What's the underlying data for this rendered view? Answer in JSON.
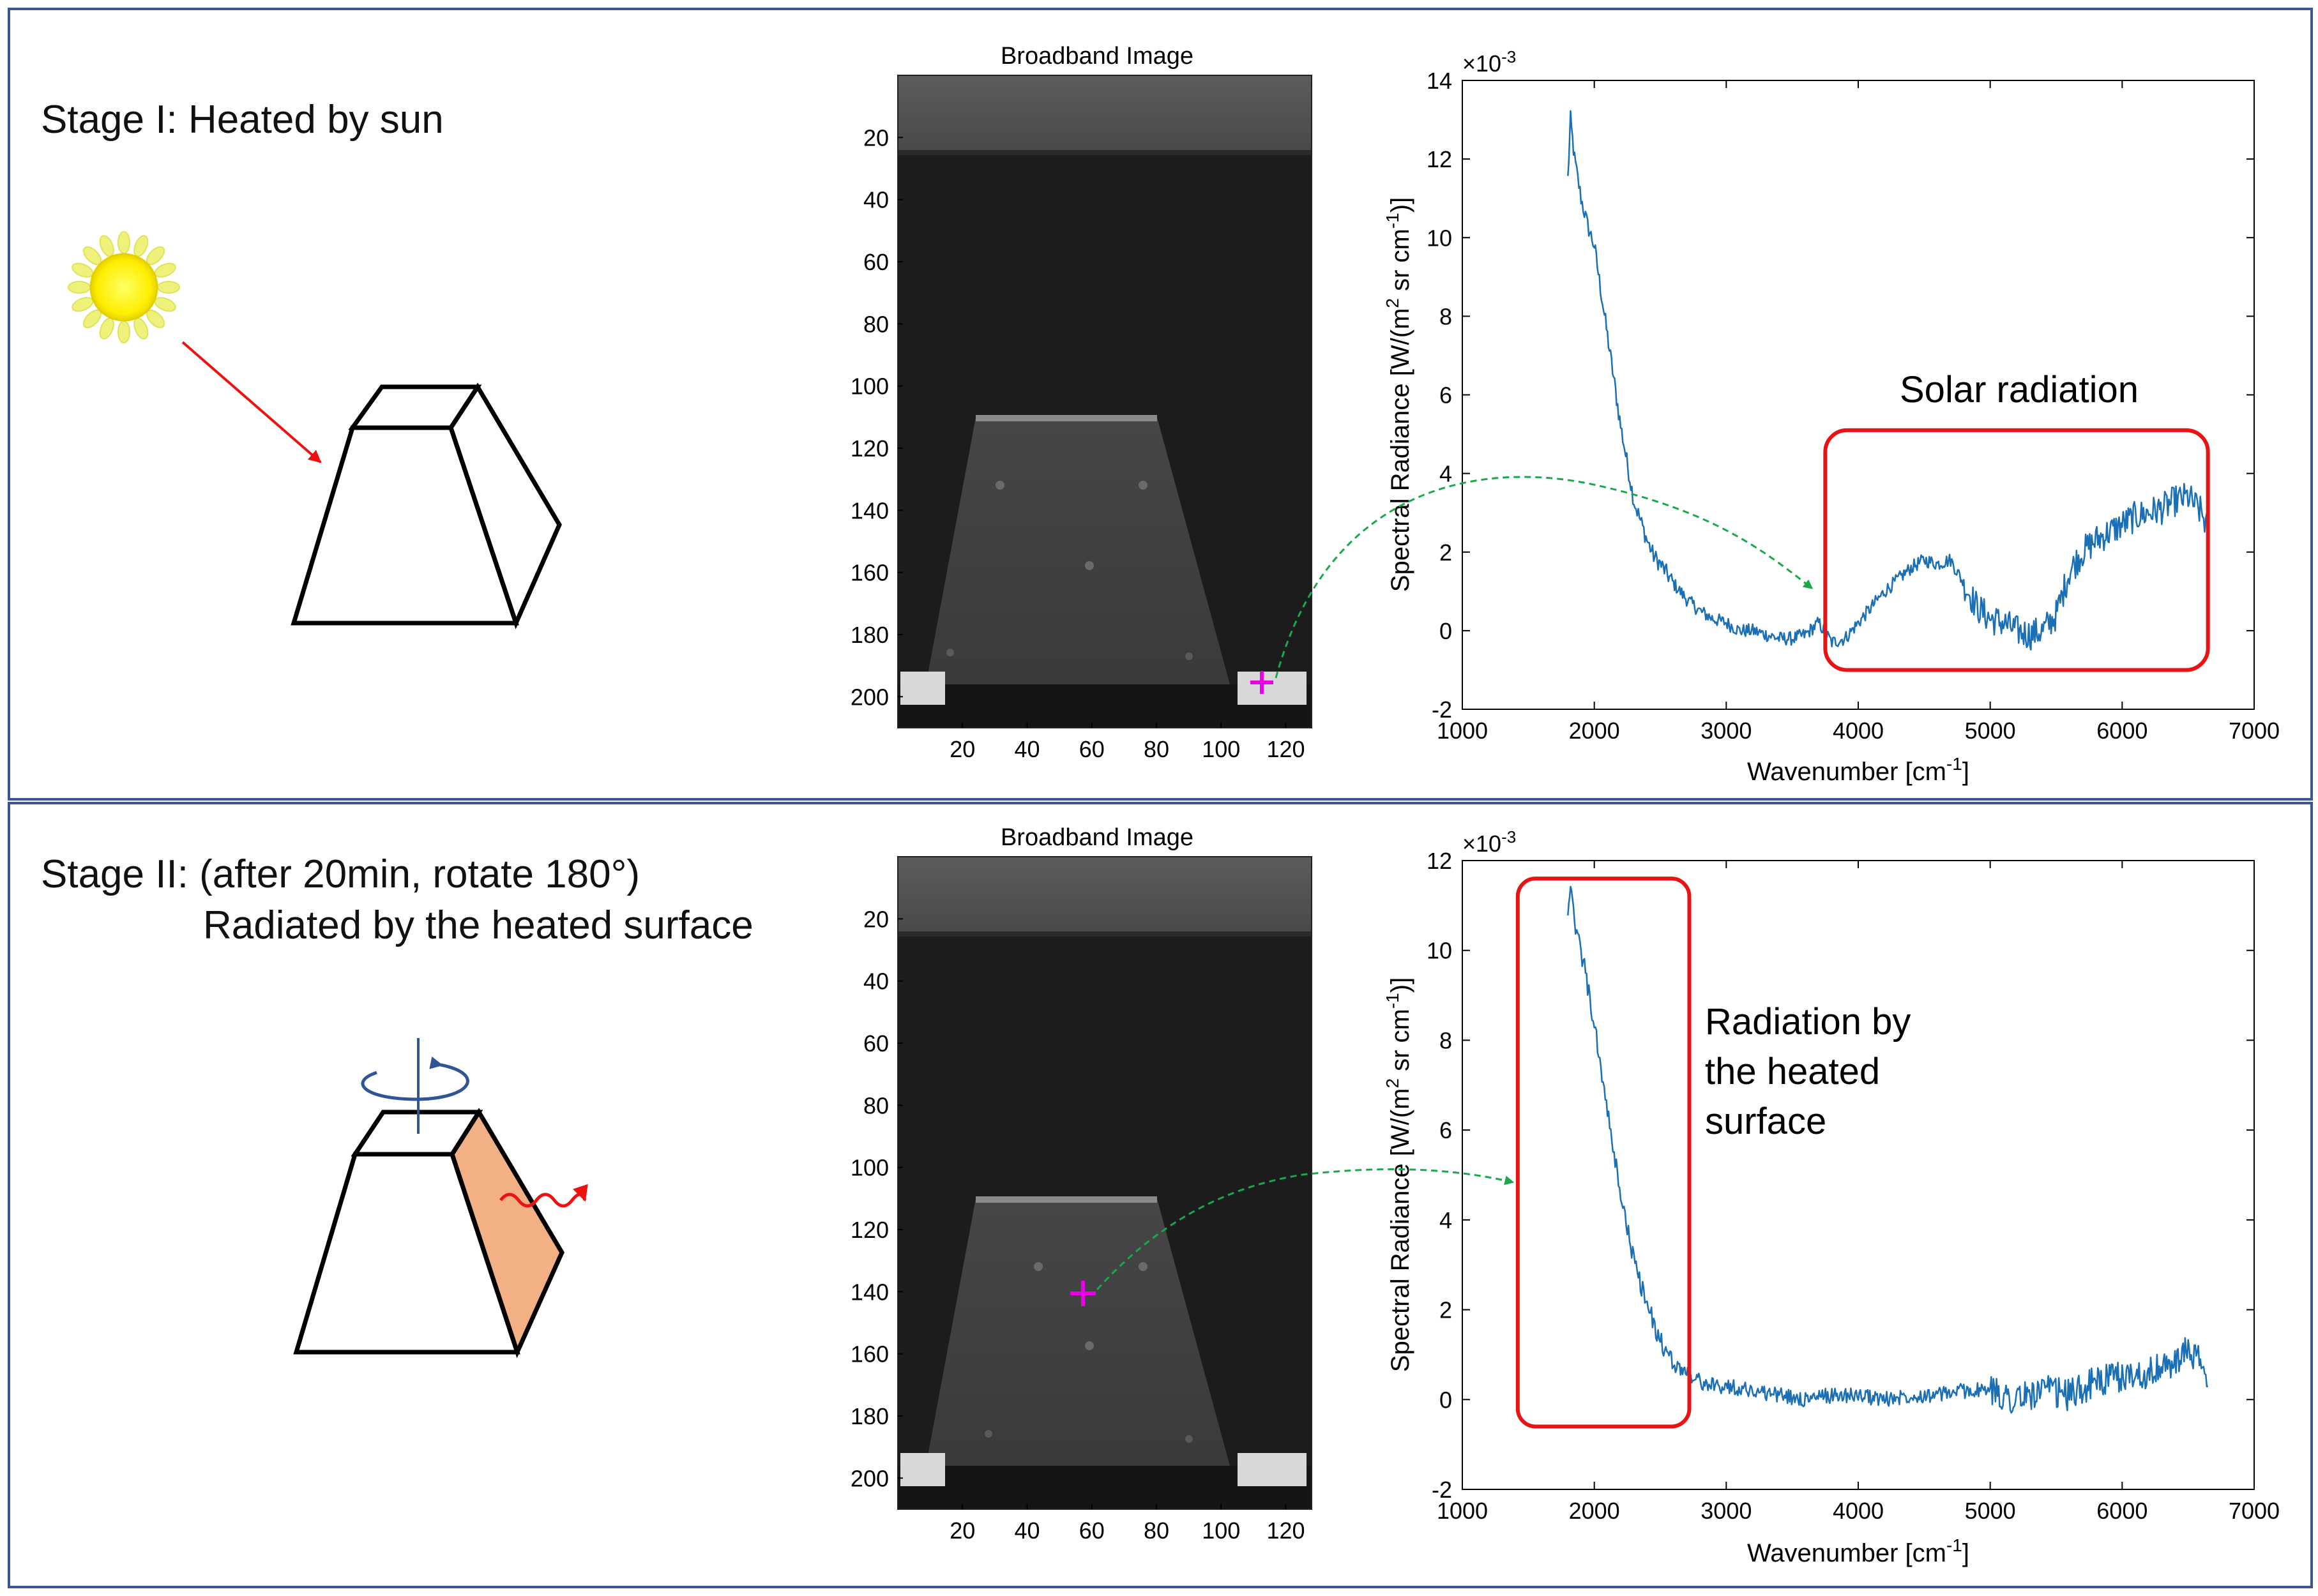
{
  "colors": {
    "panel_border": "#3b5694",
    "sun_yellow": "#ffee00",
    "sun_glow": "#eef27a",
    "arrow_red": "#ee1111",
    "spectrum_blue": "#1b6fb5",
    "highlight_red": "#e81414",
    "curve_green": "#19a84a",
    "marker_magenta": "#e800e8",
    "heated_face": "#f2b084",
    "rotation_blue": "#2f5597"
  },
  "icons": [
    "sun-icon",
    "frustum-icon",
    "rotation-arrow-icon",
    "wavy-arrow-icon",
    "plus-marker-icon"
  ],
  "stage1": {
    "title": "Stage I: Heated by sun",
    "image": {
      "title": "Broadband Image",
      "y_ticks": [
        "20",
        "40",
        "60",
        "80",
        "100",
        "120",
        "140",
        "160",
        "180",
        "200"
      ],
      "x_ticks": [
        "20",
        "40",
        "60",
        "80",
        "100",
        "120"
      ],
      "marker": [
        118,
        194
      ]
    },
    "annotation": "Solar radiation"
  },
  "stage2": {
    "title_line1": "Stage II: (after 20min, rotate 180°)",
    "title_line2": "Radiated by the heated surface",
    "image": {
      "title": "Broadband Image",
      "y_ticks": [
        "20",
        "40",
        "60",
        "80",
        "100",
        "120",
        "140",
        "160",
        "180",
        "200"
      ],
      "x_ticks": [
        "20",
        "40",
        "60",
        "80",
        "100",
        "120"
      ],
      "marker": [
        60,
        140
      ]
    },
    "annotation_lines": [
      "Radiation by",
      "the heated",
      "surface"
    ]
  },
  "chart_data": [
    {
      "type": "line",
      "title": "",
      "xlabel": "Wavenumber [cm",
      "xlabel_sup": "-1",
      "xlabel_close": "]",
      "ylabel": "Spectral Radiance [W/(m",
      "ylabel_sup1": "2",
      "ylabel_mid": " sr cm",
      "ylabel_sup2": "-1",
      "ylabel_close": ")]",
      "exponent_base": "×10",
      "exponent_power": "-3",
      "xlim": [
        1000,
        7000
      ],
      "ylim": [
        -2,
        14
      ],
      "x_ticks": [
        "1000",
        "2000",
        "3000",
        "4000",
        "5000",
        "6000",
        "7000"
      ],
      "y_ticks": [
        "-2",
        "0",
        "2",
        "4",
        "6",
        "8",
        "10",
        "12",
        "14"
      ],
      "highlight_range_x": [
        3750,
        6650
      ],
      "highlight_range_y": [
        -1,
        5.1
      ],
      "arrow_target": [
        3730,
        1.0
      ],
      "x": [
        1800,
        1820,
        1850,
        1900,
        1950,
        2000,
        2100,
        2200,
        2300,
        2350,
        2400,
        2450,
        2500,
        2600,
        2700,
        2800,
        2900,
        3000,
        3100,
        3200,
        3300,
        3400,
        3500,
        3600,
        3700,
        3800,
        3900,
        4000,
        4100,
        4200,
        4300,
        4400,
        4500,
        4600,
        4700,
        4800,
        4900,
        5000,
        5100,
        5200,
        5300,
        5400,
        5500,
        5600,
        5700,
        5800,
        5900,
        6000,
        6100,
        6200,
        6300,
        6400,
        6500,
        6600,
        6650
      ],
      "values": [
        11.5,
        13.0,
        12.0,
        11.0,
        10.3,
        9.8,
        7.5,
        5.2,
        3.3,
        2.8,
        2.3,
        1.9,
        1.7,
        1.2,
        0.8,
        0.5,
        0.3,
        0.2,
        0.0,
        0.0,
        -0.1,
        -0.2,
        -0.2,
        -0.1,
        0.2,
        -0.3,
        -0.2,
        0.2,
        0.6,
        1.0,
        1.3,
        1.6,
        1.8,
        1.7,
        1.8,
        1.2,
        0.6,
        0.3,
        0.2,
        0.0,
        -0.1,
        0.0,
        0.4,
        1.5,
        2.0,
        2.3,
        2.5,
        2.7,
        2.9,
        3.0,
        3.1,
        3.3,
        3.4,
        3.0,
        2.6
      ]
    },
    {
      "type": "line",
      "title": "",
      "xlabel": "Wavenumber [cm",
      "xlabel_sup": "-1",
      "xlabel_close": "]",
      "ylabel": "Spectral Radiance [W/(m",
      "ylabel_sup1": "2",
      "ylabel_mid": " sr cm",
      "ylabel_sup2": "-1",
      "ylabel_close": ")]",
      "exponent_base": "×10",
      "exponent_power": "-3",
      "xlim": [
        1000,
        7000
      ],
      "ylim": [
        -2,
        12
      ],
      "x_ticks": [
        "1000",
        "2000",
        "3000",
        "4000",
        "5000",
        "6000",
        "7000"
      ],
      "y_ticks": [
        "-2",
        "0",
        "2",
        "4",
        "6",
        "8",
        "10",
        "12"
      ],
      "highlight_range_x": [
        1420,
        2720
      ],
      "highlight_range_y": [
        -0.6,
        11.6
      ],
      "arrow_target": [
        1420,
        4.8
      ],
      "x": [
        1800,
        1820,
        1850,
        1900,
        1950,
        2000,
        2050,
        2100,
        2150,
        2200,
        2250,
        2300,
        2350,
        2400,
        2450,
        2500,
        2550,
        2600,
        2700,
        2800,
        2900,
        3000,
        3200,
        3400,
        3600,
        3800,
        4000,
        4200,
        4400,
        4600,
        4800,
        5000,
        5200,
        5400,
        5600,
        5800,
        6000,
        6200,
        6400,
        6500,
        6600,
        6650
      ],
      "values": [
        11.0,
        11.3,
        10.6,
        10.0,
        9.2,
        8.3,
        7.4,
        6.4,
        5.4,
        4.6,
        3.8,
        3.1,
        2.6,
        2.1,
        1.7,
        1.3,
        1.0,
        0.8,
        0.6,
        0.4,
        0.3,
        0.3,
        0.2,
        0.1,
        0.0,
        0.1,
        0.1,
        0.0,
        0.1,
        0.1,
        0.2,
        0.2,
        0.0,
        0.2,
        0.1,
        0.4,
        0.5,
        0.6,
        0.8,
        1.1,
        0.8,
        0.3
      ]
    }
  ]
}
